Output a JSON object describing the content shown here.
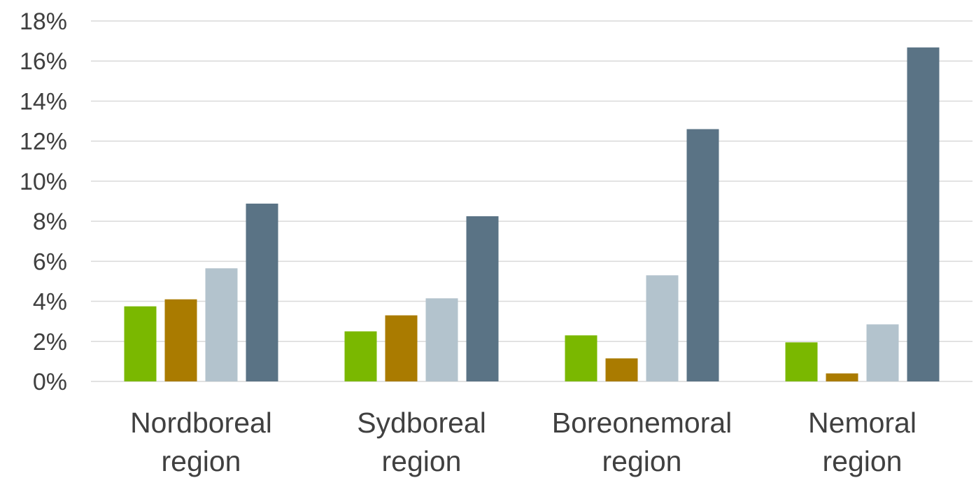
{
  "chart_data": {
    "type": "bar",
    "title": "",
    "xlabel": "",
    "ylabel": "",
    "ylim": [
      0,
      0.18
    ],
    "y_ticks": [
      "0%",
      "2%",
      "4%",
      "6%",
      "8%",
      "10%",
      "12%",
      "14%",
      "16%",
      "18%"
    ],
    "y_tick_values": [
      0,
      0.02,
      0.04,
      0.06,
      0.08,
      0.1,
      0.12,
      0.14,
      0.16,
      0.18
    ],
    "grid": true,
    "legend": "none",
    "categories": [
      [
        "Nordboreal",
        "region"
      ],
      [
        "Sydboreal",
        "region"
      ],
      [
        "Boreonemoral",
        "region"
      ],
      [
        "Nemoral",
        "region"
      ]
    ],
    "series": [
      {
        "color": "#7ab800",
        "values": [
          0.0375,
          0.025,
          0.023,
          0.0195
        ]
      },
      {
        "color": "#aa7b00",
        "values": [
          0.041,
          0.033,
          0.0115,
          0.004
        ]
      },
      {
        "color": "#b3c3cd",
        "values": [
          0.0565,
          0.0415,
          0.053,
          0.0285
        ]
      },
      {
        "color": "#5a7385",
        "values": [
          0.0888,
          0.0825,
          0.126,
          0.1668
        ]
      }
    ]
  }
}
